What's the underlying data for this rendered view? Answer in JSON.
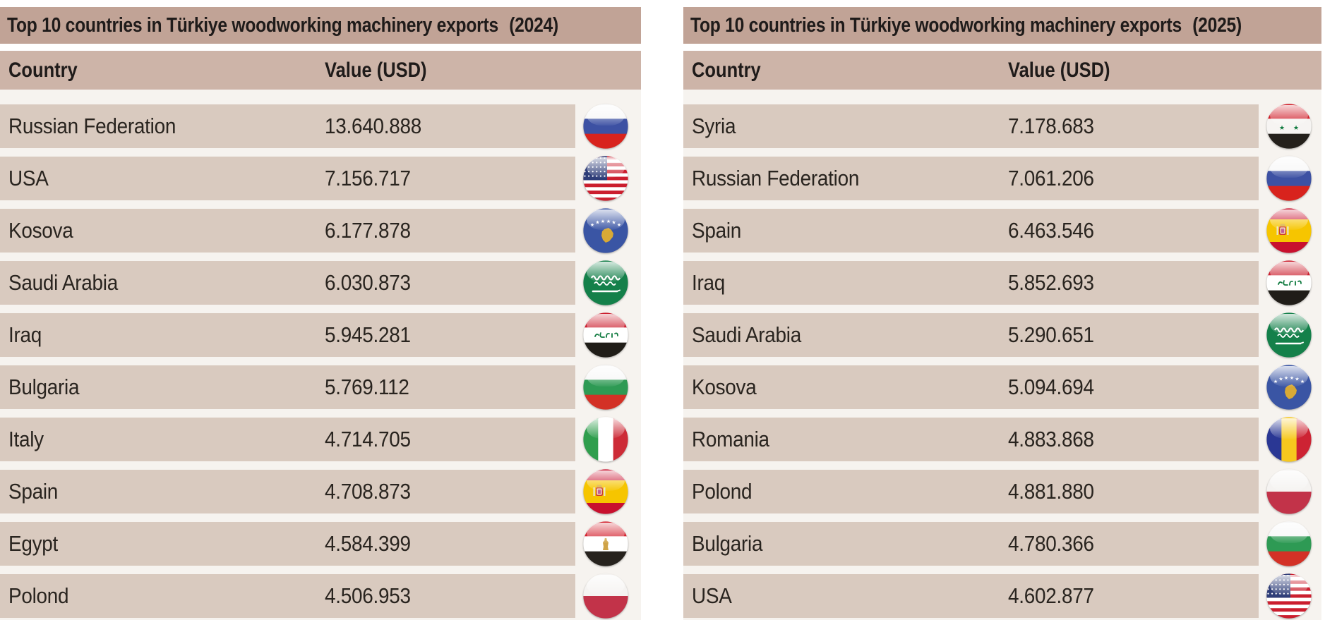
{
  "colors": {
    "title_band": "#c1a396",
    "header_band": "#cdb4a8",
    "row_band": "#d9cabf",
    "table_backdrop": "#f6f3ef",
    "text": "#221e1d"
  },
  "tables": [
    {
      "title": "Top 10 countries in Türkiye woodworking machinery exports",
      "year": "(2024)",
      "col_country": "Country",
      "col_value": "Value (USD)",
      "rows": [
        {
          "country": "Russian Federation",
          "value_display": "13.640.888",
          "value": 13640888,
          "flag": "russia"
        },
        {
          "country": "USA",
          "value_display": "7.156.717",
          "value": 7156717,
          "flag": "usa"
        },
        {
          "country": "Kosova",
          "value_display": "6.177.878",
          "value": 6177878,
          "flag": "kosovo"
        },
        {
          "country": "Saudi Arabia",
          "value_display": "6.030.873",
          "value": 6030873,
          "flag": "saudi-arabia"
        },
        {
          "country": "Iraq",
          "value_display": "5.945.281",
          "value": 5945281,
          "flag": "iraq"
        },
        {
          "country": "Bulgaria",
          "value_display": "5.769.112",
          "value": 5769112,
          "flag": "bulgaria"
        },
        {
          "country": "Italy",
          "value_display": "4.714.705",
          "value": 4714705,
          "flag": "italy"
        },
        {
          "country": "Spain",
          "value_display": "4.708.873",
          "value": 4708873,
          "flag": "spain"
        },
        {
          "country": "Egypt",
          "value_display": "4.584.399",
          "value": 4584399,
          "flag": "egypt"
        },
        {
          "country": "Polond",
          "value_display": "4.506.953",
          "value": 4506953,
          "flag": "poland"
        }
      ]
    },
    {
      "title": "Top 10 countries in Türkiye woodworking machinery exports",
      "year": "(2025)",
      "col_country": "Country",
      "col_value": "Value (USD)",
      "rows": [
        {
          "country": "Syria",
          "value_display": "7.178.683",
          "value": 7178683,
          "flag": "syria"
        },
        {
          "country": "Russian Federation",
          "value_display": "7.061.206",
          "value": 7061206,
          "flag": "russia"
        },
        {
          "country": "Spain",
          "value_display": "6.463.546",
          "value": 6463546,
          "flag": "spain"
        },
        {
          "country": "Iraq",
          "value_display": "5.852.693",
          "value": 5852693,
          "flag": "iraq"
        },
        {
          "country": "Saudi Arabia",
          "value_display": "5.290.651",
          "value": 5290651,
          "flag": "saudi-arabia"
        },
        {
          "country": "Kosova",
          "value_display": "5.094.694",
          "value": 5094694,
          "flag": "kosovo"
        },
        {
          "country": "Romania",
          "value_display": "4.883.868",
          "value": 4883868,
          "flag": "romania"
        },
        {
          "country": "Polond",
          "value_display": "4.881.880",
          "value": 4881880,
          "flag": "poland"
        },
        {
          "country": "Bulgaria",
          "value_display": "4.780.366",
          "value": 4780366,
          "flag": "bulgaria"
        },
        {
          "country": "USA",
          "value_display": "4.602.877",
          "value": 4602877,
          "flag": "usa"
        }
      ]
    }
  ],
  "chart_data": [
    {
      "type": "table",
      "title": "Top 10 countries in Türkiye woodworking machinery exports (2024)",
      "columns": [
        "Country",
        "Value (USD)"
      ],
      "rows": [
        [
          "Russian Federation",
          13640888
        ],
        [
          "USA",
          7156717
        ],
        [
          "Kosova",
          6177878
        ],
        [
          "Saudi Arabia",
          6030873
        ],
        [
          "Iraq",
          5945281
        ],
        [
          "Bulgaria",
          5769112
        ],
        [
          "Italy",
          4714705
        ],
        [
          "Spain",
          4708873
        ],
        [
          "Egypt",
          4584399
        ],
        [
          "Polond",
          4506953
        ]
      ]
    },
    {
      "type": "table",
      "title": "Top 10 countries in Türkiye woodworking machinery exports (2025)",
      "columns": [
        "Country",
        "Value (USD)"
      ],
      "rows": [
        [
          "Syria",
          7178683
        ],
        [
          "Russian Federation",
          7061206
        ],
        [
          "Spain",
          6463546
        ],
        [
          "Iraq",
          5852693
        ],
        [
          "Saudi Arabia",
          5290651
        ],
        [
          "Kosova",
          5094694
        ],
        [
          "Romania",
          4883868
        ],
        [
          "Polond",
          4881880
        ],
        [
          "Bulgaria",
          4780366
        ],
        [
          "USA",
          4602877
        ]
      ]
    }
  ]
}
